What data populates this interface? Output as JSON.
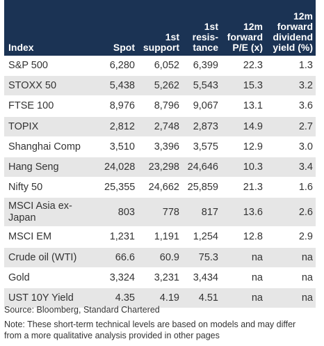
{
  "table": {
    "headers": [
      "Index",
      "Spot",
      "1st support",
      "1st resis-tance",
      "12m forward P/E (x)",
      "12m forward dividend yield (%)"
    ],
    "rows": [
      [
        "S&P 500",
        "6,280",
        "6,052",
        "6,399",
        "22.3",
        "1.3"
      ],
      [
        "STOXX 50",
        "5,438",
        "5,262",
        "5,543",
        "15.3",
        "3.2"
      ],
      [
        "FTSE 100",
        "8,976",
        "8,796",
        "9,067",
        "13.1",
        "3.6"
      ],
      [
        "TOPIX",
        "2,812",
        "2,748",
        "2,873",
        "14.9",
        "2.7"
      ],
      [
        "Shanghai Comp",
        "3,510",
        "3,396",
        "3,575",
        "12.9",
        "3.0"
      ],
      [
        "Hang Seng",
        "24,028",
        "23,298",
        "24,646",
        "10.3",
        "3.4"
      ],
      [
        "Nifty 50",
        "25,355",
        "24,662",
        "25,859",
        "21.3",
        "1.6"
      ],
      [
        "MSCI Asia ex-Japan",
        "803",
        "778",
        "817",
        "13.6",
        "2.6"
      ],
      [
        "MSCI EM",
        "1,231",
        "1,191",
        "1,254",
        "12.8",
        "2.9"
      ],
      [
        "Crude oil (WTI)",
        "66.6",
        "60.9",
        "75.3",
        "na",
        "na"
      ],
      [
        "Gold",
        "3,324",
        "3,231",
        "3,434",
        "na",
        "na"
      ],
      [
        "UST 10Y Yield",
        "4.35",
        "4.19",
        "4.51",
        "na",
        "na"
      ]
    ]
  },
  "source": "Source: Bloomberg, Standard Chartered",
  "note": "Note: These short-term technical levels are based on models and may differ from a more qualitative analysis provided in other pages",
  "colors": {
    "header_bg": "#1b3354",
    "header_text": "#ffffff",
    "alt_row": "#e6e6e6"
  }
}
